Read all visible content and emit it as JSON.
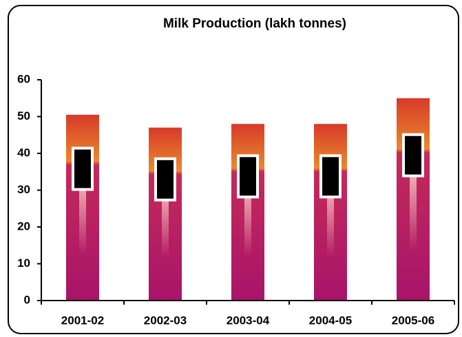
{
  "chart_data": {
    "type": "bar",
    "title": "Milk Production (lakh tonnes)",
    "categories": [
      "2001-02",
      "2002-03",
      "2003-04",
      "2004-05",
      "2005-06"
    ],
    "values": [
      50.5,
      47,
      48,
      48,
      55
    ],
    "ylim": [
      0,
      60
    ],
    "yticks": [
      0,
      10,
      20,
      30,
      40,
      50,
      60
    ]
  }
}
